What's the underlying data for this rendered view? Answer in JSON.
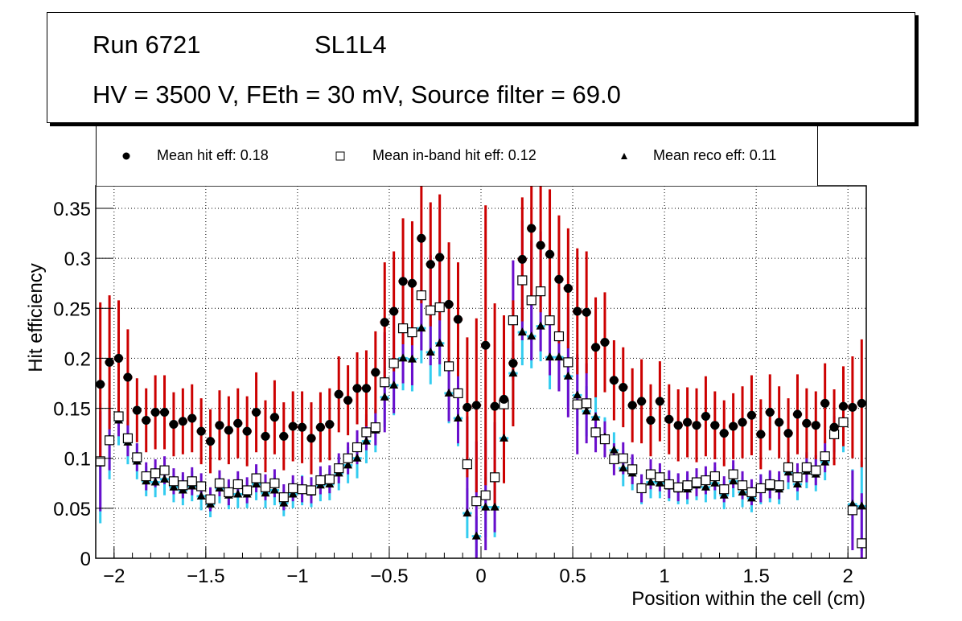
{
  "header": {
    "run": "Run 6721",
    "layer": "SL1L4",
    "conditions": "HV = 3500 V, FEth = 30 mV, Source filter = 69.0"
  },
  "legend": {
    "items": [
      {
        "label": "Mean hit  eff: 0.18",
        "marker": "filled-circle"
      },
      {
        "label": "Mean in-band hit eff: 0.12",
        "marker": "open-square"
      },
      {
        "label": "Mean reco eff: 0.11",
        "marker": "filled-triangle"
      }
    ]
  },
  "colors": {
    "hit_err": "#cc0000",
    "inband_err": "#6a0dcc",
    "reco_err": "#33ccf0",
    "grid": "#000000"
  },
  "chart_data": {
    "type": "scatter",
    "title": "",
    "xlabel": "Position within the cell (cm)",
    "ylabel": "Hit efficiency",
    "xlim": [
      -2.1,
      2.1
    ],
    "ylim": [
      0,
      0.37
    ],
    "grid": true,
    "legend_position": "top",
    "x_ticks": [
      -2,
      -1.5,
      -1,
      -0.5,
      0,
      0.5,
      1,
      1.5,
      2
    ],
    "x_tick_labels": [
      "−2",
      "−1.5",
      "−1",
      "−0.5",
      "0",
      "0.5",
      "1",
      "1.5",
      "2"
    ],
    "y_ticks": [
      0,
      0.05,
      0.1,
      0.15,
      0.2,
      0.25,
      0.3,
      0.35
    ],
    "y_tick_labels": [
      "0",
      "0.05",
      "0.1",
      "0.15",
      "0.2",
      "0.25",
      "0.3",
      "0.35"
    ],
    "x": [
      -2.075,
      -2.025,
      -1.975,
      -1.925,
      -1.875,
      -1.825,
      -1.775,
      -1.725,
      -1.675,
      -1.625,
      -1.575,
      -1.525,
      -1.475,
      -1.425,
      -1.375,
      -1.325,
      -1.275,
      -1.225,
      -1.175,
      -1.125,
      -1.075,
      -1.025,
      -0.975,
      -0.925,
      -0.875,
      -0.825,
      -0.775,
      -0.725,
      -0.675,
      -0.625,
      -0.575,
      -0.525,
      -0.475,
      -0.425,
      -0.375,
      -0.325,
      -0.275,
      -0.225,
      -0.175,
      -0.125,
      -0.075,
      -0.025,
      0.025,
      0.075,
      0.125,
      0.175,
      0.225,
      0.275,
      0.325,
      0.375,
      0.425,
      0.475,
      0.525,
      0.575,
      0.625,
      0.675,
      0.725,
      0.775,
      0.825,
      0.875,
      0.925,
      0.975,
      1.025,
      1.075,
      1.125,
      1.175,
      1.225,
      1.275,
      1.325,
      1.375,
      1.425,
      1.475,
      1.525,
      1.575,
      1.625,
      1.675,
      1.725,
      1.775,
      1.825,
      1.875,
      1.925,
      1.975,
      2.025,
      2.075
    ],
    "series": [
      {
        "name": "Mean hit  eff: 0.18",
        "marker": "filled-circle",
        "values": [
          0.174,
          0.196,
          0.2,
          0.181,
          0.148,
          0.138,
          0.146,
          0.146,
          0.134,
          0.137,
          0.14,
          0.127,
          0.117,
          0.133,
          0.128,
          0.135,
          0.127,
          0.146,
          0.122,
          0.141,
          0.122,
          0.132,
          0.131,
          0.12,
          0.131,
          0.134,
          0.164,
          0.158,
          0.17,
          0.17,
          0.186,
          0.236,
          0.247,
          0.277,
          0.275,
          0.32,
          0.294,
          0.301,
          0.254,
          0.239,
          0.151,
          0.153,
          0.213,
          0.152,
          0.159,
          0.195,
          0.299,
          0.33,
          0.313,
          0.304,
          0.279,
          0.27,
          0.247,
          0.246,
          0.211,
          0.216,
          0.178,
          0.171,
          0.153,
          0.157,
          0.138,
          0.157,
          0.139,
          0.133,
          0.136,
          0.133,
          0.142,
          0.133,
          0.125,
          0.132,
          0.136,
          0.143,
          0.124,
          0.146,
          0.136,
          0.125,
          0.144,
          0.135,
          0.133,
          0.155,
          0.131,
          0.152,
          0.151,
          0.155
        ],
        "errors": [
          0.082,
          0.067,
          0.058,
          0.048,
          0.032,
          0.032,
          0.037,
          0.037,
          0.032,
          0.033,
          0.034,
          0.033,
          0.032,
          0.035,
          0.034,
          0.035,
          0.035,
          0.04,
          0.036,
          0.037,
          0.034,
          0.035,
          0.036,
          0.036,
          0.035,
          0.036,
          0.038,
          0.035,
          0.036,
          0.038,
          0.041,
          0.06,
          0.06,
          0.063,
          0.062,
          0.065,
          0.062,
          0.063,
          0.062,
          0.057,
          0.07,
          0.087,
          0.14,
          0.103,
          0.084,
          0.063,
          0.062,
          0.068,
          0.067,
          0.065,
          0.064,
          0.06,
          0.063,
          0.061,
          0.05,
          0.05,
          0.04,
          0.04,
          0.037,
          0.042,
          0.036,
          0.04,
          0.035,
          0.036,
          0.035,
          0.037,
          0.04,
          0.034,
          0.033,
          0.033,
          0.036,
          0.04,
          0.035,
          0.038,
          0.036,
          0.035,
          0.04,
          0.035,
          0.034,
          0.04,
          0.038,
          0.04,
          0.051,
          0.064
        ]
      },
      {
        "name": "Mean in-band hit eff: 0.12",
        "marker": "open-square",
        "values": [
          0.097,
          0.118,
          0.142,
          0.12,
          0.101,
          0.082,
          0.085,
          0.088,
          0.077,
          0.073,
          0.077,
          0.072,
          0.059,
          0.075,
          0.066,
          0.074,
          0.068,
          0.08,
          0.071,
          0.075,
          0.061,
          0.07,
          0.069,
          0.068,
          0.078,
          0.079,
          0.09,
          0.1,
          0.111,
          0.126,
          0.131,
          0.176,
          0.195,
          0.23,
          0.226,
          0.263,
          0.248,
          0.251,
          0.192,
          0.165,
          0.094,
          0.057,
          0.063,
          0.081,
          0.154,
          0.238,
          0.278,
          0.258,
          0.267,
          0.238,
          0.222,
          0.196,
          0.154,
          0.155,
          0.126,
          0.119,
          0.099,
          0.1,
          0.089,
          0.07,
          0.084,
          0.081,
          0.074,
          0.071,
          0.073,
          0.076,
          0.078,
          0.082,
          0.069,
          0.084,
          0.073,
          0.066,
          0.07,
          0.074,
          0.073,
          0.091,
          0.081,
          0.091,
          0.088,
          0.102,
          0.124,
          0.136,
          0.048,
          0.015
        ],
        "errors": [
          0.05,
          0.03,
          0.02,
          0.018,
          0.014,
          0.014,
          0.014,
          0.014,
          0.013,
          0.013,
          0.014,
          0.013,
          0.012,
          0.013,
          0.013,
          0.013,
          0.013,
          0.014,
          0.013,
          0.014,
          0.013,
          0.013,
          0.013,
          0.013,
          0.014,
          0.014,
          0.015,
          0.016,
          0.017,
          0.018,
          0.018,
          0.05,
          0.05,
          0.055,
          0.053,
          0.055,
          0.055,
          0.057,
          0.055,
          0.05,
          0.048,
          0.06,
          0.055,
          0.055,
          0.05,
          0.06,
          0.06,
          0.06,
          0.06,
          0.055,
          0.055,
          0.055,
          0.05,
          0.04,
          0.02,
          0.018,
          0.016,
          0.016,
          0.015,
          0.014,
          0.015,
          0.014,
          0.014,
          0.014,
          0.014,
          0.014,
          0.014,
          0.014,
          0.013,
          0.014,
          0.014,
          0.013,
          0.014,
          0.014,
          0.014,
          0.015,
          0.014,
          0.015,
          0.015,
          0.016,
          0.018,
          0.02,
          0.04,
          0.05
        ]
      },
      {
        "name": "Mean reco eff: 0.11",
        "marker": "filled-triangle",
        "values": [
          0.095,
          0.119,
          0.138,
          0.116,
          0.097,
          0.077,
          0.076,
          0.079,
          0.071,
          0.068,
          0.072,
          0.062,
          0.054,
          0.07,
          0.063,
          0.064,
          0.064,
          0.074,
          0.065,
          0.068,
          0.055,
          0.064,
          0.068,
          0.066,
          0.073,
          0.074,
          0.085,
          0.093,
          0.1,
          0.117,
          0.128,
          0.161,
          0.173,
          0.2,
          0.199,
          0.23,
          0.206,
          0.215,
          0.165,
          0.14,
          0.045,
          0.022,
          0.051,
          0.051,
          0.12,
          0.185,
          0.226,
          0.222,
          0.232,
          0.201,
          0.201,
          0.182,
          0.163,
          0.147,
          0.141,
          0.121,
          0.108,
          0.09,
          0.085,
          0.069,
          0.076,
          0.075,
          0.072,
          0.069,
          0.069,
          0.073,
          0.071,
          0.075,
          0.063,
          0.077,
          0.066,
          0.06,
          0.069,
          0.071,
          0.069,
          0.086,
          0.074,
          0.087,
          0.084,
          0.096,
          0.126,
          0.136,
          0.054,
          0.052
        ],
        "errors": [
          0.06,
          0.04,
          0.025,
          0.022,
          0.018,
          0.015,
          0.015,
          0.016,
          0.015,
          0.015,
          0.015,
          0.014,
          0.013,
          0.015,
          0.014,
          0.014,
          0.014,
          0.016,
          0.015,
          0.015,
          0.013,
          0.014,
          0.015,
          0.015,
          0.016,
          0.016,
          0.017,
          0.018,
          0.02,
          0.022,
          0.022,
          0.03,
          0.03,
          0.032,
          0.032,
          0.035,
          0.032,
          0.033,
          0.03,
          0.028,
          0.025,
          0.02,
          0.03,
          0.03,
          0.028,
          0.032,
          0.033,
          0.032,
          0.035,
          0.032,
          0.032,
          0.03,
          0.03,
          0.025,
          0.022,
          0.02,
          0.018,
          0.018,
          0.017,
          0.015,
          0.016,
          0.015,
          0.015,
          0.015,
          0.015,
          0.015,
          0.015,
          0.016,
          0.014,
          0.016,
          0.015,
          0.014,
          0.015,
          0.015,
          0.015,
          0.017,
          0.016,
          0.017,
          0.017,
          0.018,
          0.022,
          0.03,
          0.035,
          0.045
        ]
      }
    ]
  }
}
